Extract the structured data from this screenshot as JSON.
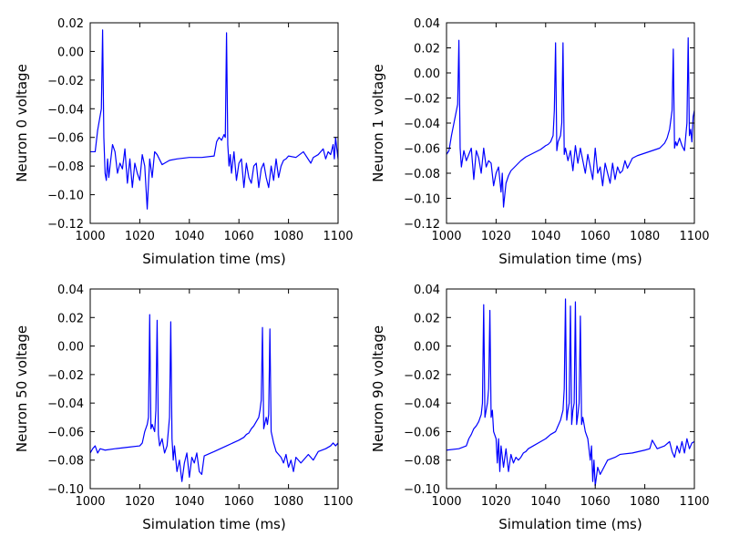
{
  "chart_data": [
    {
      "type": "line",
      "xlabel": "Simulation time (ms)",
      "ylabel": "Neuron 0 voltage",
      "xlim": [
        1000,
        1100
      ],
      "ylim": [
        -0.12,
        0.02
      ],
      "xticks": [
        1000,
        1020,
        1040,
        1060,
        1080,
        1100
      ],
      "xtick_labels": [
        "1000",
        "1020",
        "1040",
        "1060",
        "1080",
        "1100"
      ],
      "yticks": [
        -0.12,
        -0.1,
        -0.08,
        -0.06,
        -0.04,
        -0.02,
        0.0,
        0.02
      ],
      "ytick_labels": [
        "−0.12",
        "−0.10",
        "−0.08",
        "−0.06",
        "−0.04",
        "−0.02",
        "0.00",
        "0.02"
      ],
      "grid": false,
      "color": "#0000ff",
      "x": [
        1000,
        1002,
        1003,
        1004,
        1004.5,
        1005,
        1005.5,
        1006,
        1006.5,
        1007,
        1007.5,
        1008,
        1009,
        1010,
        1011,
        1012,
        1013,
        1014,
        1015,
        1016,
        1017,
        1018,
        1019,
        1020,
        1021,
        1022,
        1023,
        1024,
        1025,
        1026,
        1027,
        1029,
        1030,
        1032,
        1035,
        1040,
        1045,
        1050,
        1051,
        1052,
        1053,
        1054,
        1054.5,
        1055,
        1055.5,
        1056,
        1056.5,
        1057,
        1058,
        1059,
        1060,
        1061,
        1062,
        1063,
        1064,
        1065,
        1066,
        1067,
        1068,
        1069,
        1070,
        1071,
        1072,
        1073,
        1074,
        1075,
        1076,
        1077,
        1078,
        1079,
        1080,
        1083,
        1086,
        1089,
        1090,
        1092,
        1094,
        1095,
        1096,
        1097,
        1098,
        1098.5,
        1099,
        1099.5,
        1100
      ],
      "values": [
        -0.07,
        -0.07,
        -0.055,
        -0.045,
        -0.04,
        0.015,
        -0.06,
        -0.085,
        -0.09,
        -0.075,
        -0.088,
        -0.08,
        -0.065,
        -0.07,
        -0.085,
        -0.078,
        -0.082,
        -0.068,
        -0.092,
        -0.075,
        -0.095,
        -0.078,
        -0.085,
        -0.09,
        -0.072,
        -0.08,
        -0.11,
        -0.075,
        -0.088,
        -0.07,
        -0.072,
        -0.079,
        -0.078,
        -0.076,
        -0.075,
        -0.074,
        -0.074,
        -0.073,
        -0.063,
        -0.06,
        -0.062,
        -0.058,
        -0.06,
        0.013,
        -0.065,
        -0.08,
        -0.072,
        -0.085,
        -0.07,
        -0.09,
        -0.078,
        -0.075,
        -0.095,
        -0.078,
        -0.088,
        -0.092,
        -0.08,
        -0.078,
        -0.095,
        -0.082,
        -0.078,
        -0.088,
        -0.095,
        -0.08,
        -0.09,
        -0.075,
        -0.088,
        -0.08,
        -0.076,
        -0.075,
        -0.073,
        -0.074,
        -0.07,
        -0.078,
        -0.074,
        -0.072,
        -0.068,
        -0.075,
        -0.07,
        -0.072,
        -0.065,
        -0.075,
        -0.06,
        -0.068,
        -0.075
      ]
    },
    {
      "type": "line",
      "xlabel": "Simulation time (ms)",
      "ylabel": "Neuron 1 voltage",
      "xlim": [
        1000,
        1100
      ],
      "ylim": [
        -0.12,
        0.04
      ],
      "xticks": [
        1000,
        1020,
        1040,
        1060,
        1080,
        1100
      ],
      "xtick_labels": [
        "1000",
        "1020",
        "1040",
        "1060",
        "1080",
        "1100"
      ],
      "yticks": [
        -0.12,
        -0.1,
        -0.08,
        -0.06,
        -0.04,
        -0.02,
        0.0,
        0.02,
        0.04
      ],
      "ytick_labels": [
        "−0.12",
        "−0.10",
        "−0.08",
        "−0.06",
        "−0.04",
        "−0.02",
        "0.00",
        "0.02",
        "0.04"
      ],
      "grid": false,
      "color": "#0000ff",
      "x": [
        1000,
        1001,
        1002,
        1003,
        1004,
        1004.5,
        1005,
        1005.5,
        1006,
        1007,
        1008,
        1009,
        1010,
        1011,
        1012,
        1013,
        1014,
        1015,
        1016,
        1017,
        1018,
        1019,
        1020,
        1021,
        1022,
        1022.5,
        1023,
        1024,
        1025,
        1026,
        1028,
        1030,
        1032,
        1035,
        1038,
        1040,
        1041,
        1042,
        1043,
        1043.5,
        1044,
        1044.5,
        1045,
        1046,
        1046.5,
        1047,
        1047.5,
        1048,
        1049,
        1050,
        1051,
        1052,
        1053,
        1054,
        1055,
        1056,
        1057,
        1058,
        1059,
        1060,
        1061,
        1062,
        1063,
        1064,
        1065,
        1066,
        1067,
        1068,
        1069,
        1070,
        1071,
        1072,
        1073,
        1074,
        1075,
        1077,
        1080,
        1083,
        1086,
        1088,
        1089,
        1090,
        1091,
        1091.5,
        1092,
        1092.5,
        1093,
        1094,
        1095,
        1096,
        1097,
        1097.5,
        1098,
        1098.5,
        1099,
        1099.5,
        1100
      ],
      "values": [
        -0.065,
        -0.062,
        -0.05,
        -0.04,
        -0.03,
        -0.025,
        0.026,
        -0.06,
        -0.075,
        -0.062,
        -0.07,
        -0.065,
        -0.06,
        -0.085,
        -0.062,
        -0.068,
        -0.08,
        -0.06,
        -0.075,
        -0.07,
        -0.072,
        -0.09,
        -0.08,
        -0.075,
        -0.095,
        -0.08,
        -0.107,
        -0.088,
        -0.082,
        -0.078,
        -0.074,
        -0.07,
        -0.067,
        -0.064,
        -0.061,
        -0.058,
        -0.057,
        -0.055,
        -0.05,
        -0.03,
        0.024,
        -0.062,
        -0.055,
        -0.05,
        -0.04,
        0.024,
        -0.065,
        -0.06,
        -0.07,
        -0.062,
        -0.078,
        -0.058,
        -0.072,
        -0.06,
        -0.07,
        -0.08,
        -0.065,
        -0.075,
        -0.085,
        -0.06,
        -0.08,
        -0.075,
        -0.09,
        -0.072,
        -0.08,
        -0.088,
        -0.072,
        -0.085,
        -0.075,
        -0.08,
        -0.078,
        -0.07,
        -0.076,
        -0.072,
        -0.068,
        -0.066,
        -0.064,
        -0.062,
        -0.06,
        -0.056,
        -0.052,
        -0.045,
        -0.03,
        0.019,
        -0.06,
        -0.055,
        -0.058,
        -0.052,
        -0.058,
        -0.062,
        -0.04,
        0.028,
        -0.05,
        -0.045,
        -0.055,
        -0.035,
        -0.03
      ]
    },
    {
      "type": "line",
      "xlabel": "Simulation time (ms)",
      "ylabel": "Neuron 50 voltage",
      "xlim": [
        1000,
        1100
      ],
      "ylim": [
        -0.1,
        0.04
      ],
      "xticks": [
        1000,
        1020,
        1040,
        1060,
        1080,
        1100
      ],
      "xtick_labels": [
        "1000",
        "1020",
        "1040",
        "1060",
        "1080",
        "1100"
      ],
      "yticks": [
        -0.1,
        -0.08,
        -0.06,
        -0.04,
        -0.02,
        0.0,
        0.02,
        0.04
      ],
      "ytick_labels": [
        "−0.10",
        "−0.08",
        "−0.06",
        "−0.04",
        "−0.02",
        "0.00",
        "0.02",
        "0.04"
      ],
      "grid": false,
      "color": "#0000ff",
      "x": [
        1000,
        1001,
        1002,
        1003,
        1004,
        1006,
        1010,
        1015,
        1020,
        1021,
        1022,
        1023,
        1023.5,
        1024,
        1024.5,
        1025,
        1026,
        1026.5,
        1027,
        1027.5,
        1028,
        1029,
        1030,
        1031,
        1032,
        1032.5,
        1033,
        1033.5,
        1034,
        1035,
        1036,
        1037,
        1038,
        1039,
        1040,
        1041,
        1042,
        1043,
        1044,
        1045,
        1046,
        1050,
        1055,
        1060,
        1062,
        1063,
        1064,
        1065,
        1066,
        1067,
        1068,
        1068.5,
        1069,
        1069.5,
        1070,
        1071,
        1071.5,
        1072,
        1072.5,
        1073,
        1074,
        1075,
        1076,
        1077,
        1078,
        1079,
        1080,
        1081,
        1082,
        1083,
        1085,
        1088,
        1090,
        1092,
        1095,
        1097,
        1098,
        1099,
        1100
      ],
      "values": [
        -0.075,
        -0.072,
        -0.07,
        -0.075,
        -0.072,
        -0.073,
        -0.072,
        -0.071,
        -0.07,
        -0.068,
        -0.06,
        -0.055,
        -0.05,
        0.022,
        -0.058,
        -0.055,
        -0.06,
        -0.045,
        0.018,
        -0.062,
        -0.07,
        -0.065,
        -0.075,
        -0.07,
        -0.05,
        0.017,
        -0.065,
        -0.08,
        -0.07,
        -0.088,
        -0.08,
        -0.095,
        -0.082,
        -0.075,
        -0.092,
        -0.078,
        -0.082,
        -0.075,
        -0.088,
        -0.09,
        -0.077,
        -0.074,
        -0.07,
        -0.066,
        -0.064,
        -0.062,
        -0.061,
        -0.058,
        -0.056,
        -0.053,
        -0.05,
        -0.045,
        -0.038,
        0.013,
        -0.058,
        -0.05,
        -0.055,
        -0.048,
        0.012,
        -0.06,
        -0.068,
        -0.074,
        -0.076,
        -0.078,
        -0.082,
        -0.076,
        -0.085,
        -0.08,
        -0.088,
        -0.078,
        -0.082,
        -0.076,
        -0.08,
        -0.074,
        -0.072,
        -0.07,
        -0.068,
        -0.07,
        -0.068
      ]
    },
    {
      "type": "line",
      "xlabel": "Simulation time (ms)",
      "ylabel": "Neuron 90 voltage",
      "xlim": [
        1000,
        1100
      ],
      "ylim": [
        -0.1,
        0.04
      ],
      "xticks": [
        1000,
        1020,
        1040,
        1060,
        1080,
        1100
      ],
      "xtick_labels": [
        "1000",
        "1020",
        "1040",
        "1060",
        "1080",
        "1100"
      ],
      "yticks": [
        -0.1,
        -0.08,
        -0.06,
        -0.04,
        -0.02,
        0.0,
        0.02,
        0.04
      ],
      "ytick_labels": [
        "−0.10",
        "−0.08",
        "−0.06",
        "−0.04",
        "−0.02",
        "0.00",
        "0.02",
        "0.04"
      ],
      "grid": false,
      "color": "#0000ff",
      "x": [
        1000,
        1005,
        1008,
        1009,
        1010,
        1011,
        1012,
        1013,
        1014,
        1014.5,
        1015,
        1015.5,
        1016,
        1016.5,
        1017,
        1017.5,
        1018,
        1018.5,
        1019,
        1020,
        1020.5,
        1021,
        1021.5,
        1022,
        1023,
        1024,
        1025,
        1026,
        1027,
        1028,
        1029,
        1030,
        1031,
        1032,
        1033,
        1035,
        1038,
        1040,
        1042,
        1044,
        1045,
        1046,
        1047,
        1047.5,
        1048,
        1048.5,
        1049,
        1049.5,
        1050,
        1050.5,
        1051,
        1051.5,
        1052,
        1052.5,
        1053,
        1053.5,
        1054,
        1054.5,
        1055,
        1056,
        1057,
        1058,
        1058.5,
        1059,
        1059.5,
        1060,
        1061,
        1062,
        1065,
        1068,
        1070,
        1075,
        1080,
        1082,
        1083,
        1085,
        1088,
        1090,
        1091,
        1092,
        1093,
        1094,
        1095,
        1096,
        1097,
        1098,
        1099,
        1100
      ],
      "values": [
        -0.073,
        -0.072,
        -0.07,
        -0.065,
        -0.062,
        -0.058,
        -0.056,
        -0.053,
        -0.048,
        -0.04,
        0.029,
        -0.05,
        -0.045,
        -0.04,
        -0.03,
        0.025,
        -0.05,
        -0.045,
        -0.06,
        -0.065,
        -0.082,
        -0.065,
        -0.088,
        -0.07,
        -0.085,
        -0.072,
        -0.088,
        -0.076,
        -0.082,
        -0.078,
        -0.08,
        -0.078,
        -0.075,
        -0.074,
        -0.072,
        -0.07,
        -0.067,
        -0.065,
        -0.062,
        -0.06,
        -0.056,
        -0.052,
        -0.045,
        -0.03,
        0.033,
        -0.052,
        -0.045,
        -0.04,
        0.028,
        -0.055,
        -0.045,
        -0.04,
        0.031,
        -0.055,
        -0.048,
        -0.04,
        0.021,
        -0.055,
        -0.05,
        -0.06,
        -0.065,
        -0.08,
        -0.07,
        -0.095,
        -0.08,
        -0.098,
        -0.085,
        -0.09,
        -0.08,
        -0.078,
        -0.076,
        -0.075,
        -0.073,
        -0.072,
        -0.066,
        -0.072,
        -0.07,
        -0.067,
        -0.074,
        -0.078,
        -0.07,
        -0.075,
        -0.067,
        -0.075,
        -0.065,
        -0.072,
        -0.068,
        -0.067
      ]
    }
  ]
}
